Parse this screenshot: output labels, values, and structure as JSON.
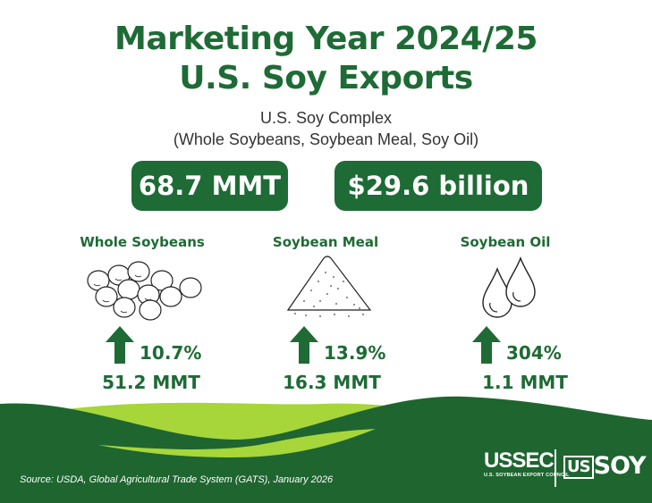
{
  "title_line1": "Marketing Year 2024/25",
  "title_line2": "U.S. Soy Exports",
  "subtitle_line1": "U.S. Soy Complex",
  "subtitle_line2": "(Whole Soybeans, Soybean Meal, Soy Oil)",
  "total_volume": "68.7 MMT",
  "total_value": "$29.6 billion",
  "categories": [
    {
      "name": "Whole Soybeans",
      "change": "10.7%",
      "volume": "51.2 MMT",
      "trend": "up"
    },
    {
      "name": "Soybean Meal",
      "change": "13.9%",
      "volume": "16.3 MMT",
      "trend": "up"
    },
    {
      "name": "Soybean Oil",
      "change": "304%",
      "volume": "1.1 MMT",
      "trend": "up"
    }
  ],
  "source": "Source: USDA, Global Agricultural Trade System (GATS), January 2026",
  "logos": {
    "ussec_main": "USSEC",
    "ussec_sub": "U.S. SOYBEAN EXPORT COUNCIL",
    "ussoy": "SOY",
    "ussoy_mark": "US"
  },
  "colors": {
    "primary_green": "#1e6b35",
    "light_green": "#a6d63a",
    "dark_green": "#1f6530"
  },
  "icons": [
    "up-arrow-icon",
    "soybeans-icon",
    "soybean-meal-pile-icon",
    "oil-drops-icon"
  ]
}
